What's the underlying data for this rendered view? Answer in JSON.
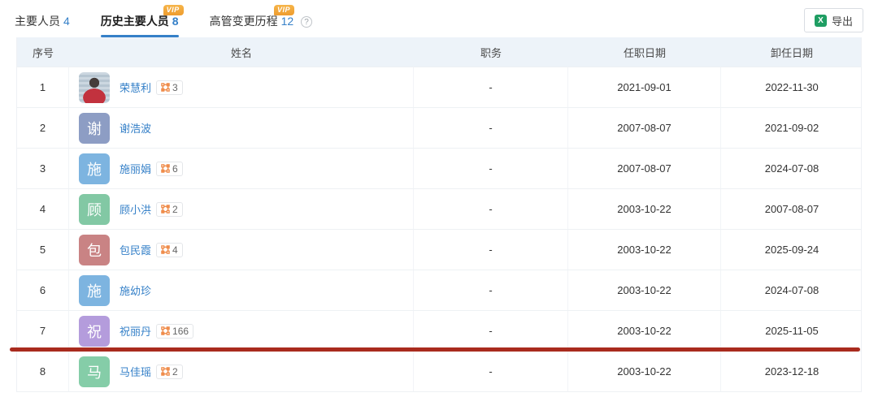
{
  "tabs": [
    {
      "label": "主要人员",
      "count": "4"
    },
    {
      "label": "历史主要人员",
      "count": "8",
      "vip": "VIP"
    },
    {
      "label": "高管变更历程",
      "count": "12",
      "vip": "VIP",
      "help": "?"
    }
  ],
  "toolbar": {
    "export_label": "导出",
    "export_icon": "excel-icon",
    "excel_icon_text": "X"
  },
  "table": {
    "headers": {
      "no": "序号",
      "name": "姓名",
      "position": "职务",
      "start": "任职日期",
      "end": "卸任日期"
    },
    "rows": [
      {
        "no": "1",
        "name": "荣慧利",
        "avatar": "photo",
        "badge_count": "3",
        "position": "-",
        "start_date": "2021-09-01",
        "end_date": "2022-11-30"
      },
      {
        "no": "2",
        "name": "谢浩波",
        "avatar_char": "谢",
        "avatar_color": "#8d9dc4",
        "position": "-",
        "start_date": "2007-08-07",
        "end_date": "2021-09-02"
      },
      {
        "no": "3",
        "name": "施丽娟",
        "avatar_char": "施",
        "avatar_color": "#7db4e0",
        "badge_count": "6",
        "position": "-",
        "start_date": "2007-08-07",
        "end_date": "2024-07-08"
      },
      {
        "no": "4",
        "name": "顾小洪",
        "avatar_char": "顾",
        "avatar_color": "#82c8a4",
        "badge_count": "2",
        "position": "-",
        "start_date": "2003-10-22",
        "end_date": "2007-08-07"
      },
      {
        "no": "5",
        "name": "包民霞",
        "avatar_char": "包",
        "avatar_color": "#c98384",
        "badge_count": "4",
        "position": "-",
        "start_date": "2003-10-22",
        "end_date": "2025-09-24"
      },
      {
        "no": "6",
        "name": "施幼珍",
        "avatar_char": "施",
        "avatar_color": "#7db4e0",
        "position": "-",
        "start_date": "2003-10-22",
        "end_date": "2024-07-08"
      },
      {
        "no": "7",
        "name": "祝丽丹",
        "avatar_char": "祝",
        "avatar_color": "#b49cdc",
        "badge_count": "166",
        "position": "-",
        "start_date": "2003-10-22",
        "end_date": "2025-11-05"
      },
      {
        "no": "8",
        "name": "马佳瑶",
        "avatar_char": "马",
        "avatar_color": "#85cda8",
        "badge_count": "2",
        "position": "-",
        "start_date": "2003-10-22",
        "end_date": "2023-12-18"
      }
    ]
  },
  "annotation": {
    "type": "red-underline",
    "color": "#a92b1e"
  },
  "colors": {
    "accent_blue": "#3580c8",
    "header_bg": "#edf3f9",
    "vip_gold": "#ee9c2e",
    "badge_icon_orange": "#ef8c4b",
    "excel_green": "#1f9e63",
    "red_line": "#a92b1e"
  }
}
